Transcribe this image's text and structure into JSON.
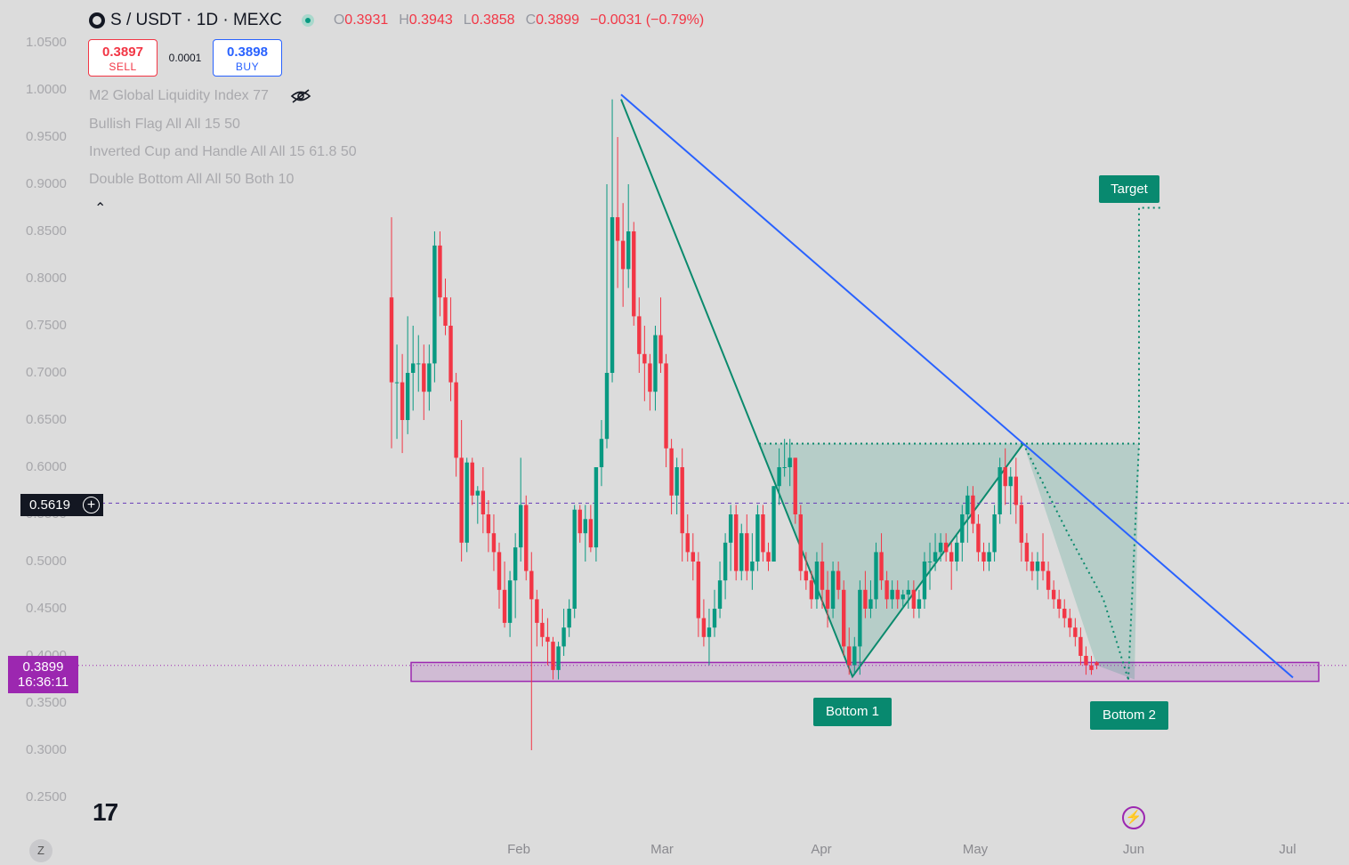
{
  "header": {
    "symbol": "S / USDT · 1D · MEXC",
    "o_key": "O",
    "o_val": "0.3931",
    "h_key": "H",
    "h_val": "0.3943",
    "l_key": "L",
    "l_val": "0.3858",
    "c_key": "C",
    "c_val": "0.3899",
    "change": "−0.0031 (−0.79%)"
  },
  "trade": {
    "sell_price": "0.3897",
    "sell_label": "SELL",
    "spread": "0.0001",
    "buy_price": "0.3898",
    "buy_label": "BUY"
  },
  "indicators": [
    "M2 Global Liquidity Index 77",
    "Bullish Flag All All 15 50",
    "Inverted Cup and Handle All All 15 61.8 50",
    "Double Bottom All All 50 Both 10"
  ],
  "crosshair": {
    "price": "0.5619"
  },
  "current": {
    "price": "0.3899",
    "countdown": "16:36:11"
  },
  "annotations": {
    "target": "Target",
    "bottom1": "Bottom 1",
    "bottom2": "Bottom 2"
  },
  "bottom_bar": {
    "z_label": "Z",
    "logo_text": "17"
  },
  "colors": {
    "up": "#089981",
    "down": "#f23645",
    "trendline": "#2962ff",
    "zone": "#9c27b0",
    "pattern": "#0b8a6d",
    "background": "#dcdcdc"
  },
  "icons": [
    "symbol-logo-icon",
    "live-status-icon",
    "eye-hidden-icon",
    "chevron-up-icon",
    "crosshair-plus-icon",
    "tradingview-logo-icon",
    "lightning-icon"
  ],
  "chart_data": {
    "type": "candlestick",
    "title": "S / USDT · 1D · MEXC",
    "y_ticks": [
      "1.0500",
      "1.0000",
      "0.9500",
      "0.9000",
      "0.8500",
      "0.8000",
      "0.7500",
      "0.7000",
      "0.6500",
      "0.6000",
      "0.5500",
      "0.5000",
      "0.4500",
      "0.4000",
      "0.3500",
      "0.3000",
      "0.2500"
    ],
    "x_ticks": [
      "Feb",
      "Mar",
      "Apr",
      "May",
      "Jun",
      "Jul"
    ],
    "ylim": [
      0.23,
      1.07
    ],
    "xlim": [
      "2025-01-03",
      "2025-07-10"
    ],
    "support_zone": [
      0.373,
      0.393
    ],
    "horizontal_line": 0.5619,
    "trendline": [
      {
        "date": "2025-02-21",
        "price": 0.995
      },
      {
        "date": "2025-07-05",
        "price": 0.377
      }
    ],
    "candles": [
      {
        "date": "2025-01-11",
        "open": 0.78,
        "high": 0.865,
        "low": 0.62,
        "close": 0.69
      },
      {
        "date": "2025-01-12",
        "open": 0.69,
        "high": 0.73,
        "low": 0.63,
        "close": 0.69
      },
      {
        "date": "2025-01-13",
        "open": 0.69,
        "high": 0.72,
        "low": 0.615,
        "close": 0.65
      },
      {
        "date": "2025-01-14",
        "open": 0.65,
        "high": 0.76,
        "low": 0.635,
        "close": 0.7
      },
      {
        "date": "2025-01-15",
        "open": 0.7,
        "high": 0.75,
        "low": 0.66,
        "close": 0.71
      },
      {
        "date": "2025-01-16",
        "open": 0.71,
        "high": 0.74,
        "low": 0.68,
        "close": 0.71
      },
      {
        "date": "2025-01-17",
        "open": 0.71,
        "high": 0.73,
        "low": 0.65,
        "close": 0.68
      },
      {
        "date": "2025-01-18",
        "open": 0.68,
        "high": 0.73,
        "low": 0.66,
        "close": 0.71
      },
      {
        "date": "2025-01-19",
        "open": 0.71,
        "high": 0.85,
        "low": 0.69,
        "close": 0.835
      },
      {
        "date": "2025-01-20",
        "open": 0.835,
        "high": 0.85,
        "low": 0.76,
        "close": 0.78
      },
      {
        "date": "2025-01-21",
        "open": 0.78,
        "high": 0.8,
        "low": 0.74,
        "close": 0.75
      },
      {
        "date": "2025-01-22",
        "open": 0.75,
        "high": 0.78,
        "low": 0.67,
        "close": 0.69
      },
      {
        "date": "2025-01-23",
        "open": 0.69,
        "high": 0.7,
        "low": 0.59,
        "close": 0.61
      },
      {
        "date": "2025-01-24",
        "open": 0.61,
        "high": 0.65,
        "low": 0.5,
        "close": 0.52
      },
      {
        "date": "2025-01-25",
        "open": 0.52,
        "high": 0.61,
        "low": 0.51,
        "close": 0.605
      },
      {
        "date": "2025-01-26",
        "open": 0.605,
        "high": 0.61,
        "low": 0.56,
        "close": 0.57
      },
      {
        "date": "2025-01-27",
        "open": 0.57,
        "high": 0.58,
        "low": 0.54,
        "close": 0.575
      },
      {
        "date": "2025-01-28",
        "open": 0.575,
        "high": 0.6,
        "low": 0.53,
        "close": 0.55
      },
      {
        "date": "2025-01-29",
        "open": 0.55,
        "high": 0.565,
        "low": 0.51,
        "close": 0.53
      },
      {
        "date": "2025-01-30",
        "open": 0.53,
        "high": 0.55,
        "low": 0.49,
        "close": 0.51
      },
      {
        "date": "2025-01-31",
        "open": 0.51,
        "high": 0.52,
        "low": 0.45,
        "close": 0.47
      },
      {
        "date": "2025-02-01",
        "open": 0.47,
        "high": 0.5,
        "low": 0.43,
        "close": 0.435
      },
      {
        "date": "2025-02-02",
        "open": 0.435,
        "high": 0.49,
        "low": 0.42,
        "close": 0.48
      },
      {
        "date": "2025-02-03",
        "open": 0.48,
        "high": 0.53,
        "low": 0.44,
        "close": 0.515
      },
      {
        "date": "2025-02-04",
        "open": 0.515,
        "high": 0.61,
        "low": 0.5,
        "close": 0.56
      },
      {
        "date": "2025-02-05",
        "open": 0.56,
        "high": 0.57,
        "low": 0.48,
        "close": 0.49
      },
      {
        "date": "2025-02-06",
        "open": 0.49,
        "high": 0.51,
        "low": 0.3,
        "close": 0.46
      },
      {
        "date": "2025-02-07",
        "open": 0.46,
        "high": 0.47,
        "low": 0.41,
        "close": 0.435
      },
      {
        "date": "2025-02-08",
        "open": 0.435,
        "high": 0.45,
        "low": 0.41,
        "close": 0.42
      },
      {
        "date": "2025-02-09",
        "open": 0.42,
        "high": 0.44,
        "low": 0.39,
        "close": 0.415
      },
      {
        "date": "2025-02-10",
        "open": 0.415,
        "high": 0.42,
        "low": 0.375,
        "close": 0.385
      },
      {
        "date": "2025-02-11",
        "open": 0.385,
        "high": 0.415,
        "low": 0.375,
        "close": 0.41
      },
      {
        "date": "2025-02-12",
        "open": 0.41,
        "high": 0.45,
        "low": 0.4,
        "close": 0.43
      },
      {
        "date": "2025-02-13",
        "open": 0.43,
        "high": 0.46,
        "low": 0.42,
        "close": 0.45
      },
      {
        "date": "2025-02-14",
        "open": 0.45,
        "high": 0.56,
        "low": 0.44,
        "close": 0.555
      },
      {
        "date": "2025-02-15",
        "open": 0.555,
        "high": 0.56,
        "low": 0.52,
        "close": 0.53
      },
      {
        "date": "2025-02-16",
        "open": 0.53,
        "high": 0.56,
        "low": 0.5,
        "close": 0.545
      },
      {
        "date": "2025-02-17",
        "open": 0.545,
        "high": 0.56,
        "low": 0.51,
        "close": 0.515
      },
      {
        "date": "2025-02-18",
        "open": 0.515,
        "high": 0.6,
        "low": 0.5,
        "close": 0.6
      },
      {
        "date": "2025-02-19",
        "open": 0.6,
        "high": 0.65,
        "low": 0.58,
        "close": 0.63
      },
      {
        "date": "2025-02-20",
        "open": 0.63,
        "high": 0.9,
        "low": 0.62,
        "close": 0.7
      },
      {
        "date": "2025-02-21",
        "open": 0.7,
        "high": 0.99,
        "low": 0.69,
        "close": 0.865
      },
      {
        "date": "2025-02-22",
        "open": 0.865,
        "high": 0.95,
        "low": 0.79,
        "close": 0.84
      },
      {
        "date": "2025-02-23",
        "open": 0.84,
        "high": 0.88,
        "low": 0.77,
        "close": 0.81
      },
      {
        "date": "2025-02-24",
        "open": 0.81,
        "high": 0.9,
        "low": 0.79,
        "close": 0.85
      },
      {
        "date": "2025-02-25",
        "open": 0.85,
        "high": 0.86,
        "low": 0.75,
        "close": 0.76
      },
      {
        "date": "2025-02-26",
        "open": 0.76,
        "high": 0.78,
        "low": 0.7,
        "close": 0.72
      },
      {
        "date": "2025-02-27",
        "open": 0.72,
        "high": 0.75,
        "low": 0.67,
        "close": 0.71
      },
      {
        "date": "2025-02-28",
        "open": 0.71,
        "high": 0.72,
        "low": 0.66,
        "close": 0.68
      },
      {
        "date": "2025-03-01",
        "open": 0.68,
        "high": 0.75,
        "low": 0.66,
        "close": 0.74
      },
      {
        "date": "2025-03-02",
        "open": 0.74,
        "high": 0.78,
        "low": 0.7,
        "close": 0.71
      },
      {
        "date": "2025-03-03",
        "open": 0.71,
        "high": 0.72,
        "low": 0.6,
        "close": 0.62
      },
      {
        "date": "2025-03-04",
        "open": 0.62,
        "high": 0.63,
        "low": 0.55,
        "close": 0.57
      },
      {
        "date": "2025-03-05",
        "open": 0.57,
        "high": 0.61,
        "low": 0.55,
        "close": 0.6
      },
      {
        "date": "2025-03-06",
        "open": 0.6,
        "high": 0.62,
        "low": 0.5,
        "close": 0.53
      },
      {
        "date": "2025-03-07",
        "open": 0.53,
        "high": 0.55,
        "low": 0.5,
        "close": 0.51
      },
      {
        "date": "2025-03-08",
        "open": 0.51,
        "high": 0.53,
        "low": 0.48,
        "close": 0.5
      },
      {
        "date": "2025-03-09",
        "open": 0.5,
        "high": 0.51,
        "low": 0.42,
        "close": 0.44
      },
      {
        "date": "2025-03-10",
        "open": 0.44,
        "high": 0.46,
        "low": 0.41,
        "close": 0.42
      },
      {
        "date": "2025-03-11",
        "open": 0.42,
        "high": 0.45,
        "low": 0.39,
        "close": 0.43
      },
      {
        "date": "2025-03-12",
        "open": 0.43,
        "high": 0.47,
        "low": 0.42,
        "close": 0.45
      },
      {
        "date": "2025-03-13",
        "open": 0.45,
        "high": 0.5,
        "low": 0.44,
        "close": 0.48
      },
      {
        "date": "2025-03-14",
        "open": 0.48,
        "high": 0.53,
        "low": 0.46,
        "close": 0.52
      },
      {
        "date": "2025-03-15",
        "open": 0.52,
        "high": 0.56,
        "low": 0.49,
        "close": 0.55
      },
      {
        "date": "2025-03-16",
        "open": 0.55,
        "high": 0.56,
        "low": 0.48,
        "close": 0.49
      },
      {
        "date": "2025-03-17",
        "open": 0.49,
        "high": 0.54,
        "low": 0.48,
        "close": 0.53
      },
      {
        "date": "2025-03-18",
        "open": 0.53,
        "high": 0.55,
        "low": 0.48,
        "close": 0.49
      },
      {
        "date": "2025-03-19",
        "open": 0.49,
        "high": 0.53,
        "low": 0.47,
        "close": 0.5
      },
      {
        "date": "2025-03-20",
        "open": 0.5,
        "high": 0.56,
        "low": 0.49,
        "close": 0.55
      },
      {
        "date": "2025-03-21",
        "open": 0.55,
        "high": 0.56,
        "low": 0.5,
        "close": 0.51
      },
      {
        "date": "2025-03-22",
        "open": 0.51,
        "high": 0.52,
        "low": 0.49,
        "close": 0.5
      },
      {
        "date": "2025-03-23",
        "open": 0.5,
        "high": 0.58,
        "low": 0.5,
        "close": 0.58
      },
      {
        "date": "2025-03-24",
        "open": 0.58,
        "high": 0.62,
        "low": 0.56,
        "close": 0.6
      },
      {
        "date": "2025-03-25",
        "open": 0.6,
        "high": 0.63,
        "low": 0.59,
        "close": 0.6
      },
      {
        "date": "2025-03-26",
        "open": 0.6,
        "high": 0.63,
        "low": 0.58,
        "close": 0.61
      },
      {
        "date": "2025-03-27",
        "open": 0.61,
        "high": 0.61,
        "low": 0.54,
        "close": 0.55
      },
      {
        "date": "2025-03-28",
        "open": 0.55,
        "high": 0.56,
        "low": 0.48,
        "close": 0.49
      },
      {
        "date": "2025-03-29",
        "open": 0.49,
        "high": 0.51,
        "low": 0.47,
        "close": 0.48
      },
      {
        "date": "2025-03-30",
        "open": 0.48,
        "high": 0.49,
        "low": 0.45,
        "close": 0.46
      },
      {
        "date": "2025-03-31",
        "open": 0.46,
        "high": 0.51,
        "low": 0.45,
        "close": 0.5
      },
      {
        "date": "2025-04-01",
        "open": 0.5,
        "high": 0.52,
        "low": 0.45,
        "close": 0.47
      },
      {
        "date": "2025-04-02",
        "open": 0.47,
        "high": 0.49,
        "low": 0.43,
        "close": 0.45
      },
      {
        "date": "2025-04-03",
        "open": 0.45,
        "high": 0.5,
        "low": 0.44,
        "close": 0.49
      },
      {
        "date": "2025-04-04",
        "open": 0.49,
        "high": 0.5,
        "low": 0.46,
        "close": 0.47
      },
      {
        "date": "2025-04-05",
        "open": 0.47,
        "high": 0.48,
        "low": 0.4,
        "close": 0.41
      },
      {
        "date": "2025-04-06",
        "open": 0.41,
        "high": 0.43,
        "low": 0.38,
        "close": 0.39
      },
      {
        "date": "2025-04-07",
        "open": 0.39,
        "high": 0.42,
        "low": 0.38,
        "close": 0.41
      },
      {
        "date": "2025-04-08",
        "open": 0.41,
        "high": 0.48,
        "low": 0.38,
        "close": 0.47
      },
      {
        "date": "2025-04-09",
        "open": 0.47,
        "high": 0.49,
        "low": 0.44,
        "close": 0.45
      },
      {
        "date": "2025-04-10",
        "open": 0.45,
        "high": 0.48,
        "low": 0.44,
        "close": 0.46
      },
      {
        "date": "2025-04-11",
        "open": 0.46,
        "high": 0.52,
        "low": 0.45,
        "close": 0.51
      },
      {
        "date": "2025-04-12",
        "open": 0.51,
        "high": 0.53,
        "low": 0.47,
        "close": 0.48
      },
      {
        "date": "2025-04-13",
        "open": 0.48,
        "high": 0.49,
        "low": 0.45,
        "close": 0.46
      },
      {
        "date": "2025-04-14",
        "open": 0.46,
        "high": 0.48,
        "low": 0.45,
        "close": 0.47
      },
      {
        "date": "2025-04-15",
        "open": 0.47,
        "high": 0.48,
        "low": 0.45,
        "close": 0.46
      },
      {
        "date": "2025-04-16",
        "open": 0.46,
        "high": 0.47,
        "low": 0.45,
        "close": 0.465
      },
      {
        "date": "2025-04-17",
        "open": 0.465,
        "high": 0.48,
        "low": 0.45,
        "close": 0.47
      },
      {
        "date": "2025-04-18",
        "open": 0.47,
        "high": 0.48,
        "low": 0.44,
        "close": 0.45
      },
      {
        "date": "2025-04-19",
        "open": 0.45,
        "high": 0.47,
        "low": 0.44,
        "close": 0.46
      },
      {
        "date": "2025-04-20",
        "open": 0.46,
        "high": 0.51,
        "low": 0.45,
        "close": 0.5
      },
      {
        "date": "2025-04-21",
        "open": 0.5,
        "high": 0.52,
        "low": 0.47,
        "close": 0.5
      },
      {
        "date": "2025-04-22",
        "open": 0.5,
        "high": 0.53,
        "low": 0.49,
        "close": 0.51
      },
      {
        "date": "2025-04-23",
        "open": 0.51,
        "high": 0.53,
        "low": 0.5,
        "close": 0.52
      },
      {
        "date": "2025-04-24",
        "open": 0.52,
        "high": 0.53,
        "low": 0.5,
        "close": 0.51
      },
      {
        "date": "2025-04-25",
        "open": 0.51,
        "high": 0.52,
        "low": 0.47,
        "close": 0.5
      },
      {
        "date": "2025-04-26",
        "open": 0.5,
        "high": 0.53,
        "low": 0.49,
        "close": 0.52
      },
      {
        "date": "2025-04-27",
        "open": 0.52,
        "high": 0.56,
        "low": 0.5,
        "close": 0.55
      },
      {
        "date": "2025-04-28",
        "open": 0.55,
        "high": 0.58,
        "low": 0.52,
        "close": 0.57
      },
      {
        "date": "2025-04-29",
        "open": 0.57,
        "high": 0.58,
        "low": 0.53,
        "close": 0.54
      },
      {
        "date": "2025-04-30",
        "open": 0.54,
        "high": 0.55,
        "low": 0.5,
        "close": 0.51
      },
      {
        "date": "2025-05-01",
        "open": 0.51,
        "high": 0.52,
        "low": 0.49,
        "close": 0.5
      },
      {
        "date": "2025-05-02",
        "open": 0.5,
        "high": 0.52,
        "low": 0.49,
        "close": 0.51
      },
      {
        "date": "2025-05-03",
        "open": 0.51,
        "high": 0.56,
        "low": 0.5,
        "close": 0.55
      },
      {
        "date": "2025-05-04",
        "open": 0.55,
        "high": 0.61,
        "low": 0.54,
        "close": 0.6
      },
      {
        "date": "2025-05-05",
        "open": 0.6,
        "high": 0.62,
        "low": 0.56,
        "close": 0.58
      },
      {
        "date": "2025-05-06",
        "open": 0.58,
        "high": 0.6,
        "low": 0.55,
        "close": 0.59
      },
      {
        "date": "2025-05-07",
        "open": 0.59,
        "high": 0.61,
        "low": 0.54,
        "close": 0.56
      },
      {
        "date": "2025-05-08",
        "open": 0.56,
        "high": 0.57,
        "low": 0.5,
        "close": 0.52
      },
      {
        "date": "2025-05-09",
        "open": 0.52,
        "high": 0.53,
        "low": 0.49,
        "close": 0.5
      },
      {
        "date": "2025-05-10",
        "open": 0.5,
        "high": 0.51,
        "low": 0.48,
        "close": 0.49
      },
      {
        "date": "2025-05-11",
        "open": 0.49,
        "high": 0.51,
        "low": 0.47,
        "close": 0.5
      },
      {
        "date": "2025-05-12",
        "open": 0.5,
        "high": 0.53,
        "low": 0.48,
        "close": 0.49
      },
      {
        "date": "2025-05-13",
        "open": 0.49,
        "high": 0.5,
        "low": 0.46,
        "close": 0.47
      },
      {
        "date": "2025-05-14",
        "open": 0.47,
        "high": 0.48,
        "low": 0.45,
        "close": 0.46
      },
      {
        "date": "2025-05-15",
        "open": 0.46,
        "high": 0.47,
        "low": 0.44,
        "close": 0.45
      },
      {
        "date": "2025-05-16",
        "open": 0.45,
        "high": 0.46,
        "low": 0.43,
        "close": 0.44
      },
      {
        "date": "2025-05-17",
        "open": 0.44,
        "high": 0.45,
        "low": 0.42,
        "close": 0.43
      },
      {
        "date": "2025-05-18",
        "open": 0.43,
        "high": 0.44,
        "low": 0.41,
        "close": 0.42
      },
      {
        "date": "2025-05-19",
        "open": 0.42,
        "high": 0.43,
        "low": 0.39,
        "close": 0.4
      },
      {
        "date": "2025-05-20",
        "open": 0.4,
        "high": 0.41,
        "low": 0.38,
        "close": 0.39
      },
      {
        "date": "2025-05-21",
        "open": 0.39,
        "high": 0.4,
        "low": 0.38,
        "close": 0.385
      },
      {
        "date": "2025-05-22",
        "open": 0.3931,
        "high": 0.3943,
        "low": 0.3858,
        "close": 0.3899
      }
    ]
  }
}
